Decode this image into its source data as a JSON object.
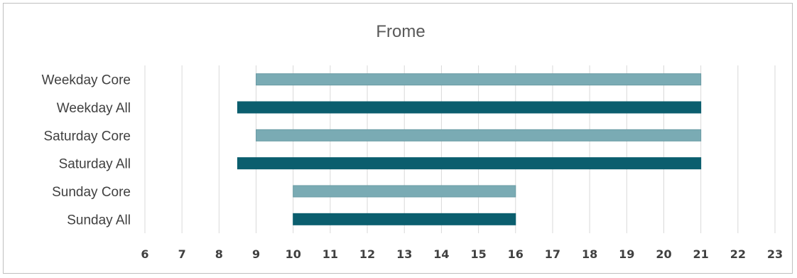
{
  "chart_data": {
    "type": "bar",
    "orientation": "horizontal-floating",
    "title": "Frome",
    "xlabel": "",
    "ylabel": "",
    "categories": [
      "Weekday Core",
      "Weekday All",
      "Saturday Core",
      "Saturday All",
      "Sunday Core",
      "Sunday All"
    ],
    "series": [
      {
        "start": [
          9,
          8.5,
          9,
          8.5,
          10,
          10
        ],
        "end": [
          21,
          21,
          21,
          21,
          16,
          16
        ]
      }
    ],
    "xlim": [
      6,
      23
    ],
    "x_ticks": [
      "6",
      "7",
      "8",
      "9",
      "10",
      "11",
      "12",
      "13",
      "14",
      "15",
      "16",
      "17",
      "18",
      "19",
      "20",
      "21",
      "22",
      "23"
    ],
    "grid": true,
    "legend": "none",
    "colors": {
      "core": "#7aabb4",
      "core_border": "#6a9ba4",
      "all": "#0b5e6e"
    }
  }
}
